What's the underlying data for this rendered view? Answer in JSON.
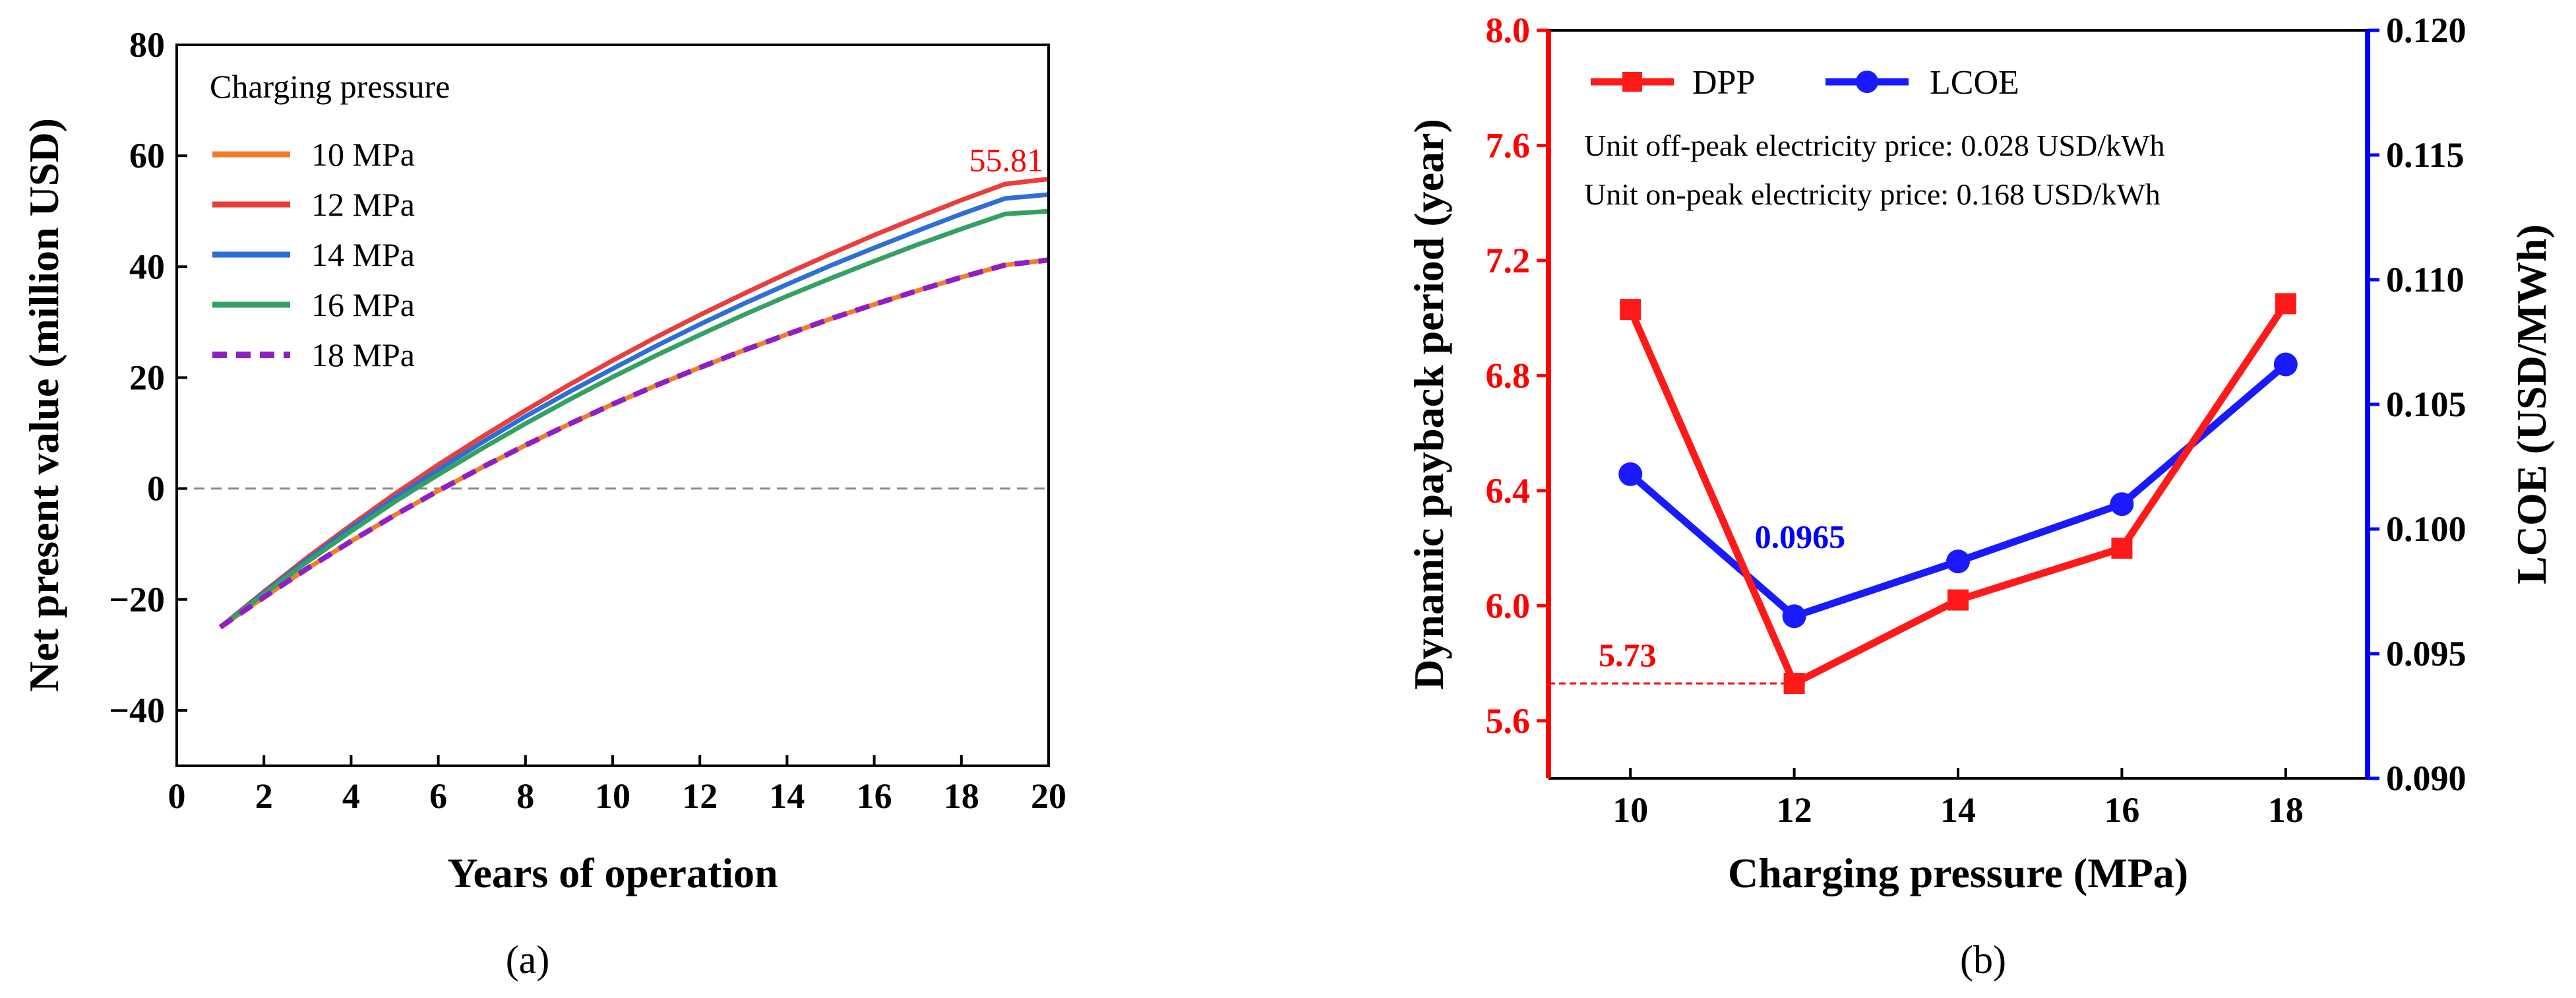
{
  "chart_data": [
    {
      "panel": "(a)",
      "type": "line",
      "xlabel": "Years of operation",
      "ylabel": "Net present value (million USD)",
      "xlim": [
        0,
        20
      ],
      "ylim": [
        -50,
        80
      ],
      "xticks": [
        0,
        2,
        4,
        6,
        8,
        10,
        12,
        14,
        16,
        18,
        20
      ],
      "yticks": [
        -40,
        -20,
        0,
        20,
        40,
        60,
        80
      ],
      "legend_title": "Charging pressure",
      "legend_position": "top-left",
      "annotation": "55.81",
      "x": [
        1,
        2,
        3,
        4,
        5,
        6,
        7,
        8,
        9,
        10,
        11,
        12,
        13,
        14,
        15,
        16,
        17,
        18,
        19,
        20
      ],
      "series": [
        {
          "name": "10 MPa",
          "color": "#f07d2f",
          "dash": false,
          "values": [
            -25.0,
            -19.6,
            -14.4,
            -9.5,
            -4.8,
            -0.4,
            3.8,
            7.8,
            11.6,
            15.2,
            18.6,
            21.8,
            24.9,
            27.8,
            30.6,
            33.2,
            35.7,
            38.1,
            40.3,
            41.2
          ]
        },
        {
          "name": "12 MPa",
          "color": "#e83e3e",
          "dash": false,
          "values": [
            -25.0,
            -18.6,
            -12.4,
            -6.6,
            -1.0,
            4.3,
            9.3,
            14.1,
            18.7,
            23.1,
            27.3,
            31.3,
            35.1,
            38.8,
            42.3,
            45.7,
            48.9,
            52.0,
            54.9,
            55.81
          ]
        },
        {
          "name": "14 MPa",
          "color": "#2e6fd6",
          "dash": false,
          "values": [
            -25.0,
            -18.8,
            -12.8,
            -7.1,
            -1.7,
            3.4,
            8.3,
            13.0,
            17.4,
            21.6,
            25.7,
            29.6,
            33.3,
            36.8,
            40.2,
            43.4,
            46.5,
            49.5,
            52.3,
            53.0
          ]
        },
        {
          "name": "16 MPa",
          "color": "#35a064",
          "dash": false,
          "values": [
            -25.0,
            -19.0,
            -13.2,
            -7.7,
            -2.4,
            2.5,
            7.2,
            11.7,
            16.0,
            20.1,
            24.0,
            27.7,
            31.3,
            34.7,
            37.9,
            41.0,
            44.0,
            46.8,
            49.5,
            50.0
          ]
        },
        {
          "name": "18 MPa",
          "color": "#8e1fc4",
          "dash": true,
          "values": [
            -25.0,
            -19.6,
            -14.4,
            -9.5,
            -4.8,
            -0.4,
            3.8,
            7.8,
            11.6,
            15.2,
            18.6,
            21.8,
            24.9,
            27.8,
            30.6,
            33.2,
            35.7,
            38.1,
            40.3,
            41.2
          ]
        }
      ]
    },
    {
      "panel": "(b)",
      "type": "line",
      "xlabel": "Charging pressure (MPa)",
      "ylabel_left": "Dynamic payback period (year)",
      "ylabel_right": "LCOE (USD/MWh)",
      "xlim": [
        9,
        19
      ],
      "ylim_left": [
        5.4,
        8.0
      ],
      "ylim_right": [
        0.09,
        0.12
      ],
      "xticks": [
        10,
        12,
        14,
        16,
        18
      ],
      "yticks_left": [
        "5.6",
        "6.0",
        "6.4",
        "6.8",
        "7.2",
        "7.6",
        "8.0"
      ],
      "yticks_right": [
        "0.090",
        "0.095",
        "0.100",
        "0.105",
        "0.110",
        "0.115",
        "0.120"
      ],
      "categories": [
        10,
        12,
        14,
        16,
        18
      ],
      "legend_position": "top-left",
      "notes": [
        "Unit off-peak electricity price: 0.028 USD/kWh",
        "Unit on-peak electricity price: 0.168 USD/kWh"
      ],
      "annotations": {
        "dpp_min": "5.73",
        "lcoe_min": "0.0965"
      },
      "colors": {
        "left_axis": "#ff0000",
        "right_axis": "#0000ff"
      },
      "series": [
        {
          "name": "DPP",
          "axis": "left",
          "color": "#ff1a1a",
          "marker": "square",
          "values": [
            7.03,
            5.73,
            6.02,
            6.2,
            7.05
          ]
        },
        {
          "name": "LCOE",
          "axis": "right",
          "color": "#1a1aff",
          "marker": "circle",
          "values": [
            0.1022,
            0.0965,
            0.0987,
            0.101,
            0.1066
          ]
        }
      ]
    }
  ],
  "captions": [
    "(a)",
    "(b)"
  ]
}
